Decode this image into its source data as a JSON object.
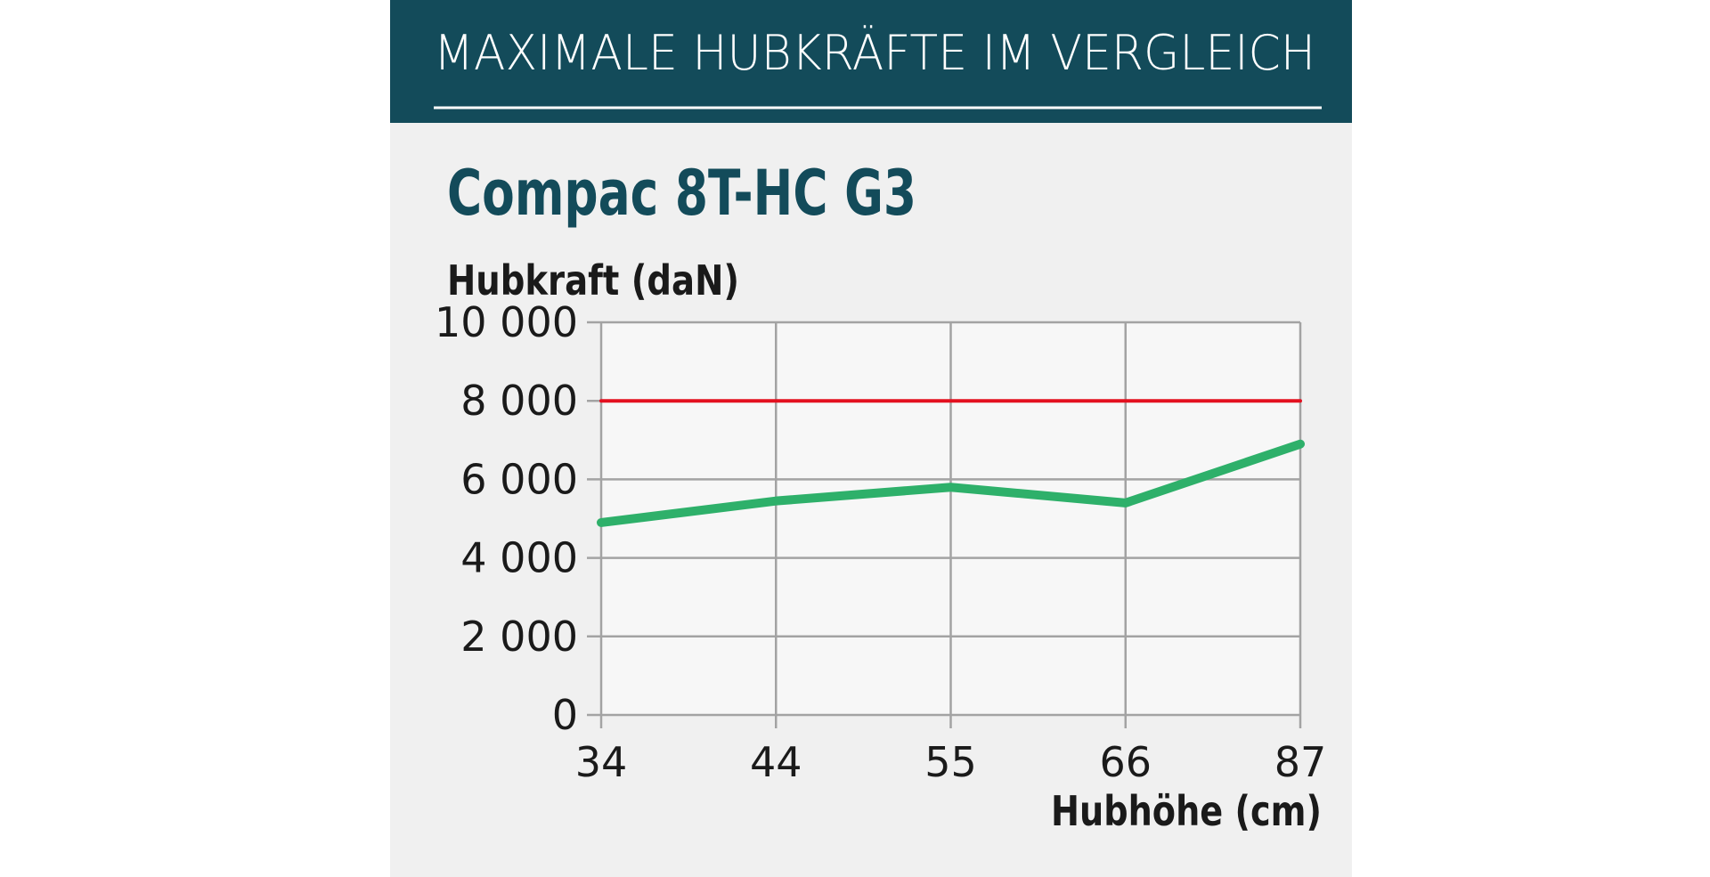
{
  "chart_data": {
    "type": "line",
    "header": "MAXIMALE HUBKRÄFTE IM VERGLEICH",
    "title": "Compac 8T-HC G3",
    "y_label": "Hubkraft (daN)",
    "x_label": "Hubhöhe (cm)",
    "categories": [
      "34",
      "44",
      "55",
      "66",
      "87"
    ],
    "series": [
      {
        "color": "#2eb06a",
        "values": [
          4900,
          5450,
          5800,
          5400,
          6900
        ]
      },
      {
        "color": "#e3101f",
        "values": [
          8000,
          8000,
          8000,
          8000,
          8000
        ]
      }
    ],
    "ylim": [
      0,
      10000
    ],
    "yticks": [
      0,
      {
        "value": 2000,
        "label": "2 000"
      },
      {
        "value": 4000,
        "label": "4 000"
      },
      {
        "value": 6000,
        "label": "6 000"
      },
      {
        "value": 8000,
        "label": "8 000"
      },
      {
        "value": 10000,
        "label": "10 000"
      }
    ],
    "grid": true
  }
}
